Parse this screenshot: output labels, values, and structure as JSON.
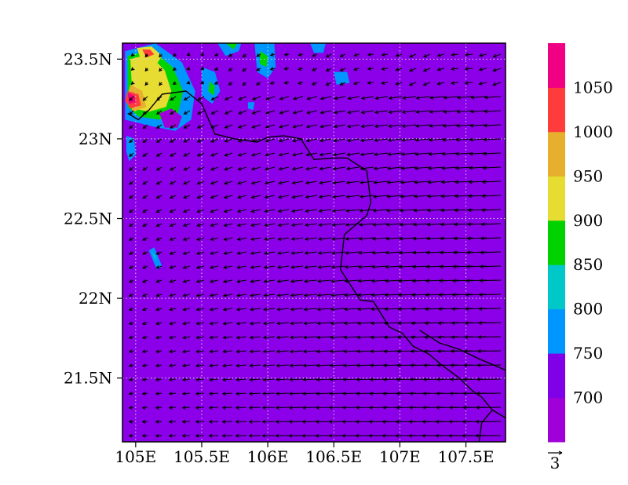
{
  "map": {
    "lon_range": [
      104.9,
      107.8
    ],
    "lat_range": [
      21.1,
      23.6
    ],
    "x_ticks": [
      {
        "value": 105.0,
        "label": "105E"
      },
      {
        "value": 105.5,
        "label": "105.5E"
      },
      {
        "value": 106.0,
        "label": "106E"
      },
      {
        "value": 106.5,
        "label": "106.5E"
      },
      {
        "value": 107.0,
        "label": "107E"
      },
      {
        "value": 107.5,
        "label": "107.5E"
      }
    ],
    "y_ticks": [
      {
        "value": 23.5,
        "label": "23.5N"
      },
      {
        "value": 23.0,
        "label": "23N"
      },
      {
        "value": 22.5,
        "label": "22.5N"
      },
      {
        "value": 22.0,
        "label": "22N"
      },
      {
        "value": 21.5,
        "label": "21.5N"
      }
    ],
    "grid": true,
    "background_color": "#8B00E8"
  },
  "colorbar": {
    "levels": [
      {
        "label": "",
        "color": "#A000D8"
      },
      {
        "label": "700",
        "color": "#8000E8"
      },
      {
        "label": "750",
        "color": "#0096FF"
      },
      {
        "label": "800",
        "color": "#00C8C8"
      },
      {
        "label": "850",
        "color": "#00D200"
      },
      {
        "label": "900",
        "color": "#E6DC32"
      },
      {
        "label": "950",
        "color": "#E6AF2D"
      },
      {
        "label": "1000",
        "color": "#FF3C3C"
      },
      {
        "label": "1050",
        "color": "#F00082"
      }
    ]
  },
  "vector_reference": {
    "label": "3"
  },
  "contour_patches": [
    {
      "color": "#0096FF",
      "points": [
        [
          104.92,
          23.55
        ],
        [
          105.15,
          23.6
        ],
        [
          105.35,
          23.48
        ],
        [
          105.45,
          23.3
        ],
        [
          105.42,
          23.12
        ],
        [
          105.3,
          23.05
        ],
        [
          105.12,
          23.08
        ],
        [
          104.92,
          23.12
        ]
      ]
    },
    {
      "color": "#00D200",
      "points": [
        [
          104.94,
          23.52
        ],
        [
          105.12,
          23.56
        ],
        [
          105.28,
          23.45
        ],
        [
          105.36,
          23.3
        ],
        [
          105.32,
          23.16
        ],
        [
          105.18,
          23.12
        ],
        [
          105.02,
          23.14
        ],
        [
          104.94,
          23.2
        ]
      ]
    },
    {
      "color": "#E6DC32",
      "points": [
        [
          104.96,
          23.5
        ],
        [
          105.1,
          23.53
        ],
        [
          105.22,
          23.43
        ],
        [
          105.27,
          23.3
        ],
        [
          105.23,
          23.2
        ],
        [
          105.1,
          23.17
        ],
        [
          104.98,
          23.19
        ]
      ]
    },
    {
      "color": "#E6AF2D",
      "points": [
        [
          104.96,
          23.34
        ],
        [
          105.05,
          23.3
        ],
        [
          105.08,
          23.2
        ],
        [
          104.98,
          23.17
        ],
        [
          104.93,
          23.25
        ]
      ]
    },
    {
      "color": "#FF3C3C",
      "points": [
        [
          104.94,
          23.3
        ],
        [
          105.02,
          23.28
        ],
        [
          105.04,
          23.21
        ],
        [
          104.96,
          23.19
        ],
        [
          104.92,
          23.24
        ]
      ]
    },
    {
      "color": "#F00082",
      "points": [
        [
          104.94,
          23.29
        ],
        [
          104.99,
          23.27
        ],
        [
          105.0,
          23.23
        ],
        [
          104.95,
          23.22
        ]
      ]
    },
    {
      "color": "#E6DC32",
      "points": [
        [
          105.01,
          23.57
        ],
        [
          105.12,
          23.58
        ],
        [
          105.2,
          23.52
        ],
        [
          105.16,
          23.47
        ],
        [
          105.04,
          23.49
        ]
      ]
    },
    {
      "color": "#FF3C3C",
      "points": [
        [
          105.05,
          23.56
        ],
        [
          105.11,
          23.56
        ],
        [
          105.14,
          23.53
        ],
        [
          105.08,
          23.51
        ]
      ]
    },
    {
      "color": "#A000D8",
      "points": [
        [
          105.18,
          23.16
        ],
        [
          105.27,
          23.19
        ],
        [
          105.35,
          23.14
        ],
        [
          105.32,
          23.07
        ],
        [
          105.22,
          23.07
        ]
      ]
    },
    {
      "color": "#0096FF",
      "points": [
        [
          104.93,
          23.02
        ],
        [
          104.99,
          23.0
        ],
        [
          105.0,
          22.9
        ],
        [
          104.95,
          22.86
        ],
        [
          104.93,
          22.92
        ]
      ]
    },
    {
      "color": "#0096FF",
      "points": [
        [
          105.5,
          23.45
        ],
        [
          105.6,
          23.42
        ],
        [
          105.64,
          23.3
        ],
        [
          105.58,
          23.22
        ],
        [
          105.5,
          23.27
        ]
      ]
    },
    {
      "color": "#00D200",
      "points": [
        [
          105.56,
          23.36
        ],
        [
          105.6,
          23.33
        ],
        [
          105.59,
          23.27
        ],
        [
          105.55,
          23.3
        ]
      ]
    },
    {
      "color": "#0096FF",
      "points": [
        [
          105.62,
          23.6
        ],
        [
          105.8,
          23.6
        ],
        [
          105.78,
          23.55
        ],
        [
          105.68,
          23.52
        ]
      ]
    },
    {
      "color": "#00D200",
      "points": [
        [
          105.68,
          23.6
        ],
        [
          105.77,
          23.6
        ],
        [
          105.74,
          23.56
        ]
      ]
    },
    {
      "color": "#0096FF",
      "points": [
        [
          105.9,
          23.6
        ],
        [
          106.05,
          23.6
        ],
        [
          106.06,
          23.45
        ],
        [
          106.0,
          23.38
        ],
        [
          105.92,
          23.42
        ]
      ]
    },
    {
      "color": "#00D200",
      "points": [
        [
          105.94,
          23.55
        ],
        [
          106.0,
          23.52
        ],
        [
          105.99,
          23.45
        ],
        [
          105.94,
          23.47
        ]
      ]
    },
    {
      "color": "#0096FF",
      "points": [
        [
          106.32,
          23.6
        ],
        [
          106.44,
          23.6
        ],
        [
          106.42,
          23.54
        ],
        [
          106.35,
          23.54
        ]
      ]
    },
    {
      "color": "#0096FF",
      "points": [
        [
          106.5,
          23.42
        ],
        [
          106.6,
          23.42
        ],
        [
          106.62,
          23.35
        ],
        [
          106.52,
          23.34
        ]
      ]
    },
    {
      "color": "#0096FF",
      "points": [
        [
          105.85,
          23.23
        ],
        [
          105.9,
          23.23
        ],
        [
          105.89,
          23.18
        ],
        [
          105.85,
          23.19
        ]
      ]
    },
    {
      "color": "#0096FF",
      "points": [
        [
          105.1,
          22.3
        ],
        [
          105.14,
          22.32
        ],
        [
          105.2,
          22.2
        ],
        [
          105.16,
          22.18
        ]
      ]
    },
    {
      "color": "#00C8C8",
      "points": [
        [
          105.12,
          22.29
        ],
        [
          105.15,
          22.27
        ],
        [
          105.15,
          22.24
        ]
      ]
    }
  ],
  "borders": [
    {
      "points": [
        [
          104.94,
          23.16
        ],
        [
          105.02,
          23.12
        ],
        [
          105.1,
          23.18
        ],
        [
          105.2,
          23.28
        ],
        [
          105.38,
          23.3
        ],
        [
          105.5,
          23.22
        ],
        [
          105.6,
          23.03
        ],
        [
          105.75,
          23.0
        ],
        [
          105.92,
          22.98
        ],
        [
          106.0,
          23.01
        ],
        [
          106.12,
          23.02
        ],
        [
          106.25,
          23.0
        ],
        [
          106.35,
          22.87
        ],
        [
          106.5,
          22.88
        ],
        [
          106.6,
          22.88
        ],
        [
          106.75,
          22.8
        ],
        [
          106.78,
          22.6
        ],
        [
          106.75,
          22.52
        ],
        [
          106.58,
          22.4
        ],
        [
          106.55,
          22.18
        ],
        [
          106.7,
          21.99
        ],
        [
          106.8,
          21.98
        ],
        [
          106.92,
          21.82
        ],
        [
          107.02,
          21.78
        ],
        [
          107.1,
          21.7
        ],
        [
          107.22,
          21.65
        ],
        [
          107.32,
          21.58
        ],
        [
          107.45,
          21.5
        ],
        [
          107.55,
          21.42
        ],
        [
          107.62,
          21.38
        ],
        [
          107.7,
          21.3
        ],
        [
          107.8,
          21.25
        ]
      ]
    },
    {
      "points": [
        [
          107.15,
          21.8
        ],
        [
          107.3,
          21.72
        ],
        [
          107.45,
          21.68
        ],
        [
          107.6,
          21.62
        ],
        [
          107.8,
          21.55
        ]
      ]
    },
    {
      "points": [
        [
          107.6,
          21.1
        ],
        [
          107.62,
          21.22
        ],
        [
          107.7,
          21.3
        ]
      ]
    }
  ]
}
